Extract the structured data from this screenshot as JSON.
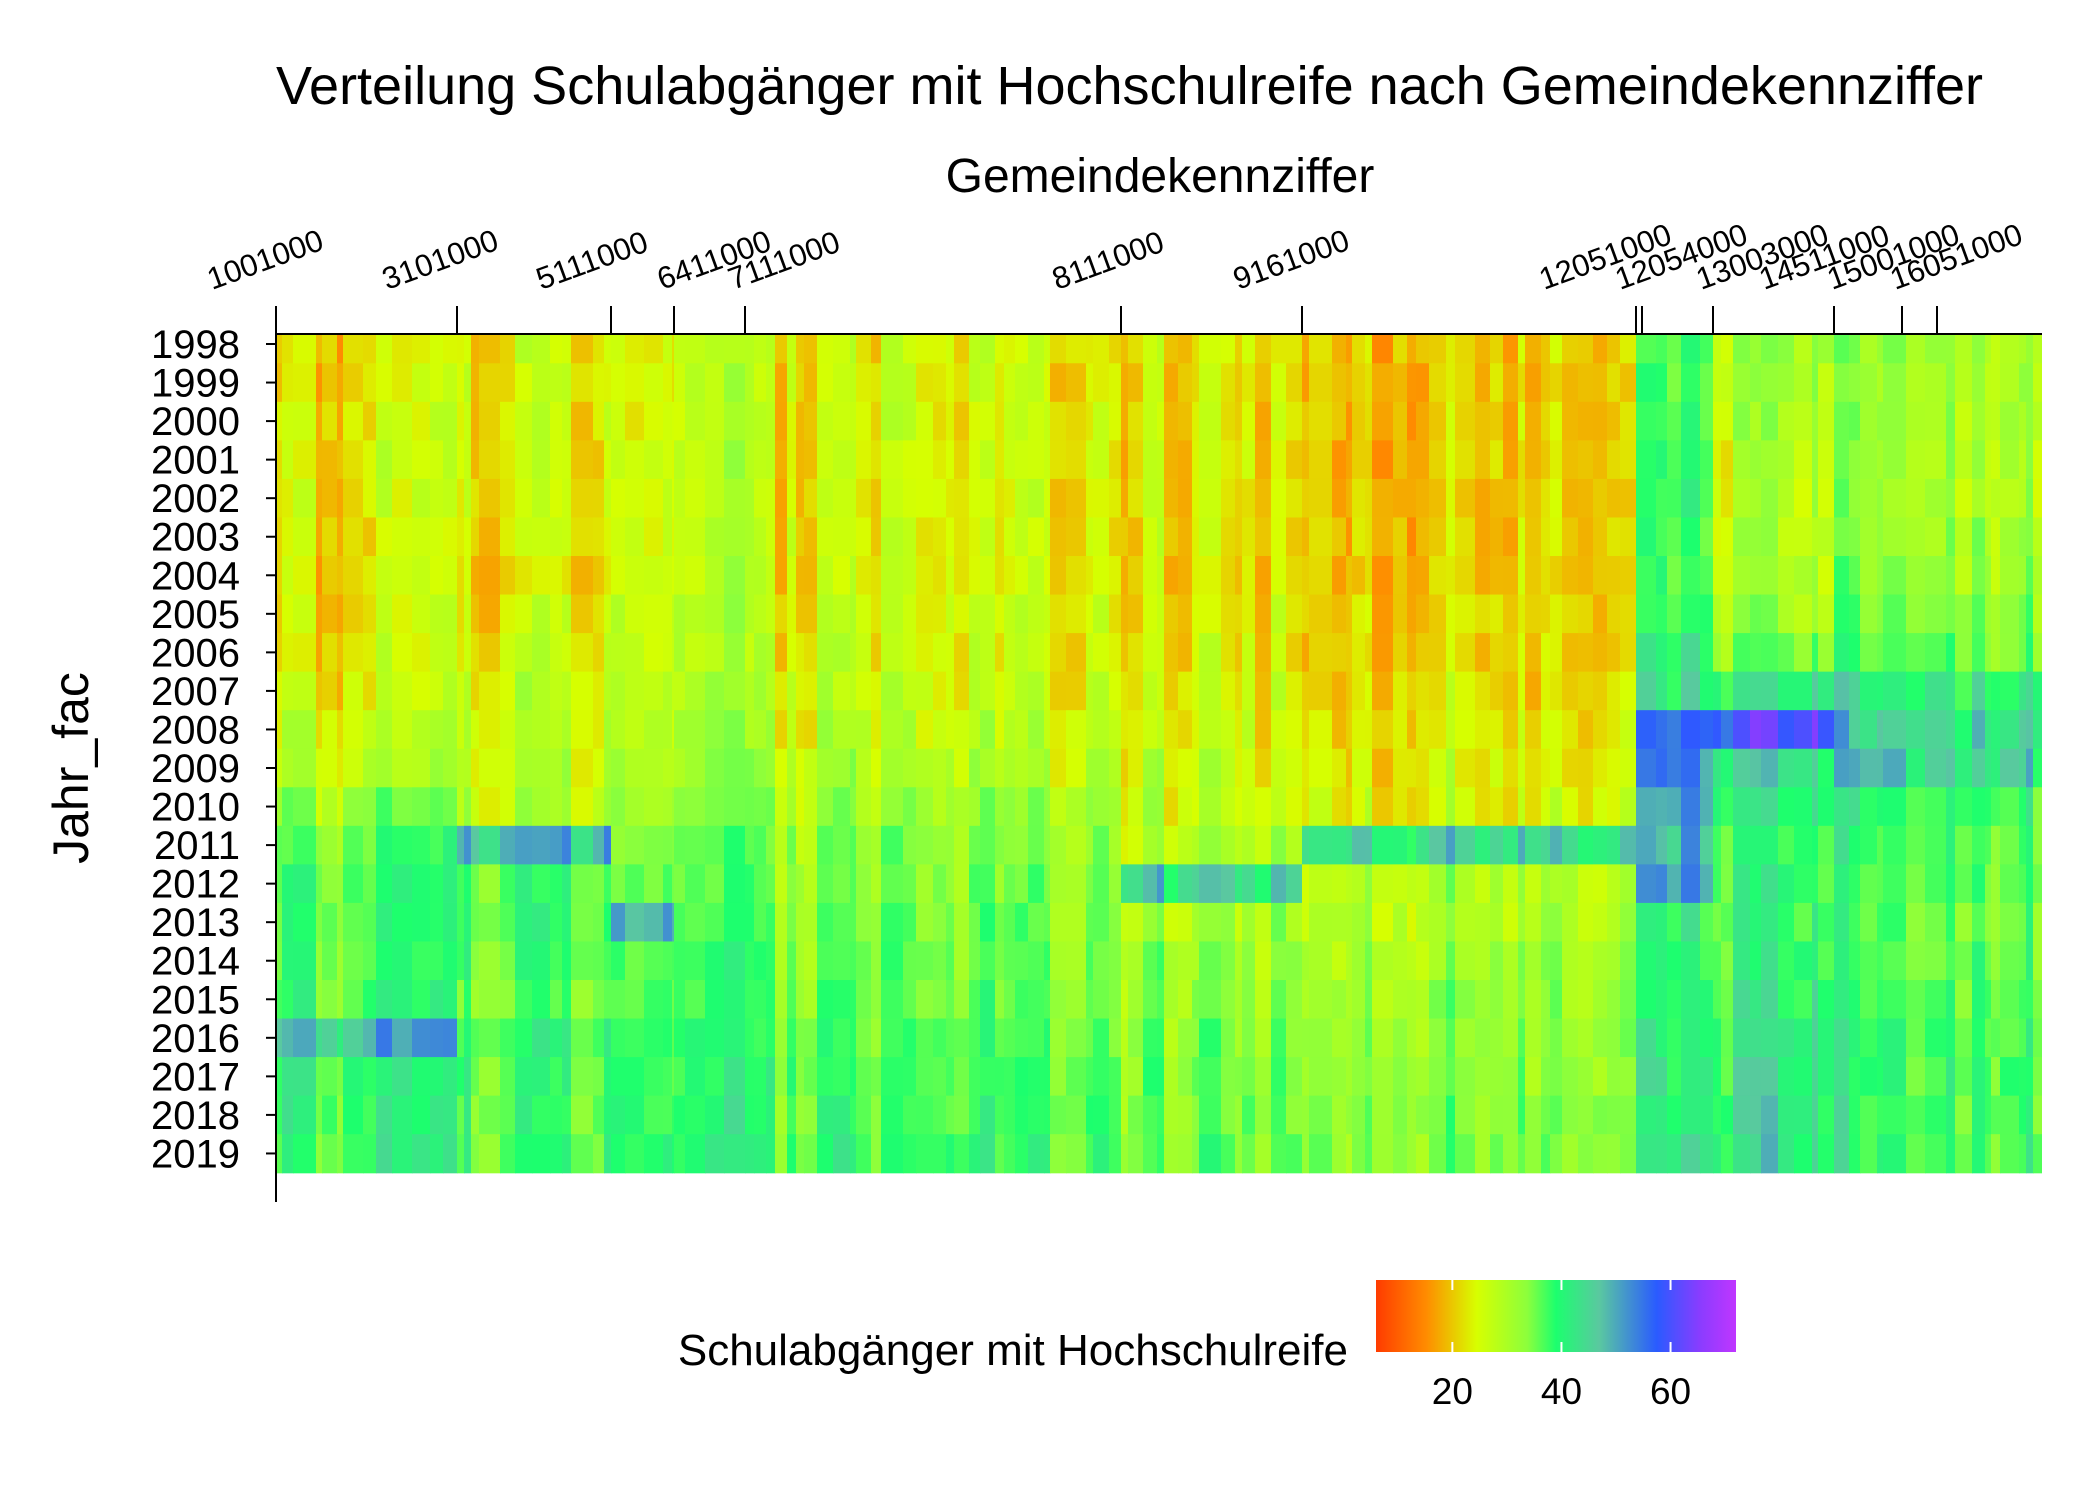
{
  "chart_data": {
    "type": "heatmap",
    "title": "Verteilung Schulabgänger mit Hochschulreife nach Gemeindekennziffer",
    "subtitle": "Gemeindekennziffer",
    "ylabel": "Jahr_fac",
    "legend_title": "Schulabgänger mit Hochschulreife",
    "legend_ticks": [
      20,
      40,
      60
    ],
    "legend_range": [
      6,
      72
    ],
    "legend_position": "bottom",
    "x_axis_position": "top",
    "x_tick_labels": [
      "1001000",
      "3101000",
      "5111000",
      "6411000",
      "7111000",
      "8111000",
      "9161000",
      "12051000",
      "12054000",
      "13003000",
      "14511000",
      "15001000",
      "16051000"
    ],
    "y_categories": [
      "1998",
      "1999",
      "2000",
      "2001",
      "2002",
      "2003",
      "2004",
      "2005",
      "2006",
      "2007",
      "2008",
      "2009",
      "2010",
      "2011",
      "2012",
      "2013",
      "2014",
      "2015",
      "2016",
      "2017",
      "2018",
      "2019"
    ],
    "column_groups": [
      {
        "from_tick": "1001000",
        "to_tick": "3101000",
        "values": [
          20,
          20,
          21,
          21,
          21,
          20,
          20,
          20,
          21,
          22,
          24,
          26,
          30,
          34,
          36,
          36,
          35,
          36,
          46,
          38,
          38,
          37
        ]
      },
      {
        "from_tick": "3101000",
        "to_tick": "5111000",
        "values": [
          22,
          22,
          22,
          22,
          22,
          22,
          18,
          22,
          23,
          25,
          25,
          26,
          27,
          48,
          36,
          36,
          36,
          34,
          37,
          37,
          36,
          37
        ]
      },
      {
        "from_tick": "5111000",
        "to_tick": "6411000",
        "values": [
          24,
          24,
          24,
          25,
          25,
          25,
          25,
          26,
          26,
          27,
          28,
          29,
          31,
          33,
          35,
          50,
          37,
          37,
          38,
          38,
          39,
          40
        ]
      },
      {
        "from_tick": "6411000",
        "to_tick": "7111000",
        "values": [
          25,
          25,
          25,
          26,
          26,
          26,
          26,
          27,
          27,
          28,
          29,
          30,
          31,
          33,
          34,
          36,
          37,
          37,
          38,
          38,
          39,
          40
        ]
      },
      {
        "from_tick": "7111000",
        "to_tick": "8111000",
        "values": [
          22,
          22,
          22,
          22,
          22,
          22,
          22,
          23,
          23,
          24,
          25,
          27,
          29,
          31,
          32,
          33,
          33,
          34,
          35,
          36,
          36,
          37
        ]
      },
      {
        "from_tick": "8111000",
        "to_tick": "9161000",
        "values": [
          21,
          21,
          21,
          21,
          21,
          21,
          21,
          22,
          22,
          23,
          24,
          25,
          26,
          28,
          45,
          30,
          31,
          32,
          33,
          34,
          34,
          35
        ]
      },
      {
        "from_tick": "9161000",
        "to_tick": "12051000",
        "values": [
          19,
          19,
          19,
          19,
          19,
          19,
          19,
          20,
          20,
          21,
          22,
          23,
          24,
          44,
          28,
          29,
          30,
          31,
          32,
          32,
          33,
          33
        ]
      },
      {
        "from_tick": "12051000",
        "to_tick": "13003000",
        "values": [
          37,
          37,
          37,
          38,
          38,
          38,
          38,
          39,
          40,
          42,
          55,
          52,
          50,
          48,
          50,
          40,
          40,
          40,
          41,
          42,
          42,
          43
        ]
      },
      {
        "from_tick": "13003000",
        "to_tick": "14511000",
        "values": [
          30,
          29,
          28,
          27,
          27,
          27,
          28,
          30,
          34,
          41,
          58,
          43,
          41,
          38,
          38,
          38,
          39,
          40,
          41,
          41,
          42,
          42
        ]
      },
      {
        "from_tick": "14511000",
        "to_tick": "16051000",
        "values": [
          30,
          30,
          30,
          29,
          29,
          30,
          31,
          33,
          35,
          42,
          44,
          45,
          39,
          37,
          37,
          36,
          36,
          37,
          38,
          38,
          38,
          38
        ]
      }
    ]
  }
}
